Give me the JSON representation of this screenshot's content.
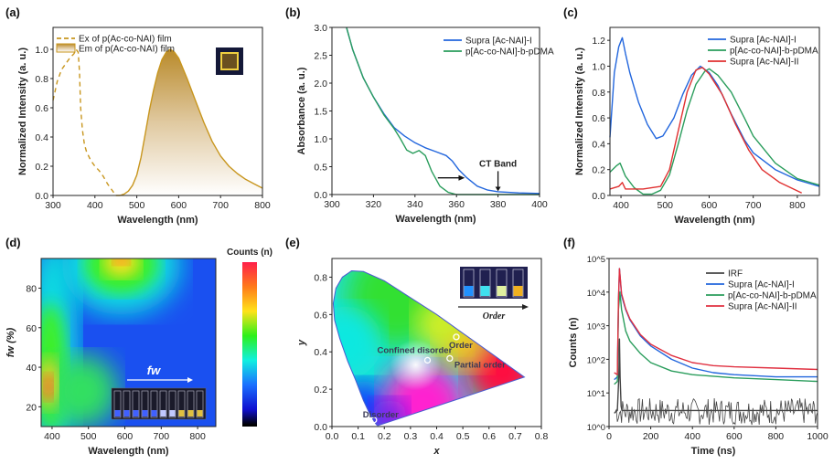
{
  "chart_data": [
    {
      "id": "a",
      "panel_label": "(a)",
      "type": "area",
      "xlabel": "Wavelength (nm)",
      "ylabel": "Normalized Intensity (a. u.)",
      "xlim": [
        300,
        800
      ],
      "ylim": [
        0,
        1.15
      ],
      "xticks": [
        300,
        400,
        500,
        600,
        700,
        800
      ],
      "yticks": [
        0.0,
        0.2,
        0.4,
        0.6,
        0.8,
        1.0
      ],
      "legend": "top-left",
      "grid": false,
      "series": [
        {
          "name": "Ex of p(Ac-co-NAI) film",
          "style": "dashed",
          "color": "#c8961e",
          "x": [
            300,
            310,
            320,
            330,
            340,
            350,
            355,
            360,
            363,
            366,
            370,
            375,
            380,
            390,
            400,
            410,
            420,
            430,
            440,
            450
          ],
          "y": [
            0.65,
            0.78,
            0.86,
            0.9,
            0.94,
            0.97,
            1.0,
            0.98,
            0.85,
            0.6,
            0.45,
            0.35,
            0.3,
            0.24,
            0.2,
            0.17,
            0.13,
            0.08,
            0.04,
            0.0
          ]
        },
        {
          "name": "Em of p(Ac-co-NAI) film",
          "style": "filled",
          "color": "#c8961e",
          "x": [
            450,
            460,
            470,
            480,
            490,
            500,
            510,
            520,
            530,
            540,
            550,
            560,
            570,
            580,
            590,
            600,
            620,
            640,
            660,
            680,
            700,
            720,
            740,
            760,
            780,
            800
          ],
          "y": [
            0.0,
            0.0,
            0.01,
            0.03,
            0.07,
            0.14,
            0.26,
            0.42,
            0.58,
            0.72,
            0.84,
            0.93,
            0.98,
            1.0,
            0.98,
            0.94,
            0.8,
            0.65,
            0.5,
            0.37,
            0.27,
            0.2,
            0.15,
            0.11,
            0.08,
            0.05
          ]
        }
      ]
    },
    {
      "id": "b",
      "panel_label": "(b)",
      "type": "line",
      "xlabel": "Wavelength (nm)",
      "ylabel": "Absorbance (a. u.)",
      "xlim": [
        300,
        400
      ],
      "ylim": [
        0,
        3.0
      ],
      "xticks": [
        300,
        320,
        340,
        360,
        380,
        400
      ],
      "yticks": [
        0.0,
        0.5,
        1.0,
        1.5,
        2.0,
        2.5,
        3.0
      ],
      "legend": "top-right",
      "grid": false,
      "annotations": [
        {
          "text": "CT Band",
          "x": 380,
          "y": 0.05
        }
      ],
      "series": [
        {
          "name": "Supra [Ac-NAI]-I",
          "color": "#2266dd",
          "x": [
            307,
            310,
            315,
            320,
            325,
            330,
            335,
            340,
            345,
            350,
            355,
            358,
            361,
            365,
            370,
            375,
            380,
            390,
            400
          ],
          "y": [
            3.0,
            2.6,
            2.1,
            1.75,
            1.45,
            1.2,
            1.05,
            0.93,
            0.84,
            0.77,
            0.7,
            0.6,
            0.45,
            0.3,
            0.15,
            0.08,
            0.05,
            0.03,
            0.02
          ]
        },
        {
          "name": "p[Ac-co-NAI]-b-pDMA",
          "color": "#2a9d5c",
          "x": [
            307,
            310,
            315,
            320,
            325,
            330,
            333,
            336,
            339,
            342,
            345,
            348,
            352,
            356,
            360,
            380,
            400
          ],
          "y": [
            3.0,
            2.6,
            2.1,
            1.75,
            1.43,
            1.18,
            1.0,
            0.8,
            0.74,
            0.79,
            0.7,
            0.42,
            0.15,
            0.04,
            0.0,
            0.0,
            0.0
          ]
        }
      ]
    },
    {
      "id": "c",
      "panel_label": "(c)",
      "type": "line",
      "xlabel": "Wavelength (nm)",
      "ylabel": "Normalized Intensity (a. u.)",
      "xlim": [
        375,
        850
      ],
      "ylim": [
        0,
        1.3
      ],
      "xticks": [
        400,
        500,
        600,
        700,
        800
      ],
      "yticks": [
        0.0,
        0.2,
        0.4,
        0.6,
        0.8,
        1.0,
        1.2
      ],
      "legend": "top-right",
      "grid": false,
      "series": [
        {
          "name": "Supra [Ac-NAI]-I",
          "color": "#2266dd",
          "x": [
            375,
            385,
            395,
            403,
            410,
            420,
            440,
            460,
            480,
            495,
            520,
            540,
            560,
            580,
            600,
            620,
            650,
            680,
            700,
            750,
            800,
            850
          ],
          "y": [
            0.45,
            0.95,
            1.15,
            1.22,
            1.1,
            0.95,
            0.72,
            0.55,
            0.44,
            0.46,
            0.6,
            0.78,
            0.93,
            1.0,
            0.95,
            0.85,
            0.63,
            0.43,
            0.33,
            0.2,
            0.12,
            0.07
          ]
        },
        {
          "name": "p[Ac-co-NAI]-b-pDMA",
          "color": "#2a9d5c",
          "x": [
            375,
            390,
            398,
            410,
            430,
            450,
            470,
            490,
            510,
            530,
            550,
            570,
            590,
            600,
            620,
            650,
            680,
            700,
            750,
            800,
            850
          ],
          "y": [
            0.18,
            0.23,
            0.25,
            0.15,
            0.06,
            0.01,
            0.01,
            0.04,
            0.16,
            0.4,
            0.66,
            0.86,
            0.96,
            0.98,
            0.93,
            0.8,
            0.6,
            0.46,
            0.25,
            0.13,
            0.08
          ]
        },
        {
          "name": "Supra [Ac-NAI]-II",
          "color": "#e03030",
          "x": [
            375,
            395,
            403,
            410,
            450,
            490,
            510,
            530,
            550,
            570,
            585,
            600,
            630,
            660,
            690,
            720,
            760,
            810
          ],
          "y": [
            0.05,
            0.07,
            0.1,
            0.05,
            0.05,
            0.07,
            0.2,
            0.5,
            0.8,
            0.97,
            0.99,
            0.94,
            0.78,
            0.55,
            0.35,
            0.2,
            0.1,
            0.02
          ]
        }
      ]
    },
    {
      "id": "d",
      "panel_label": "(d)",
      "type": "heatmap",
      "xlabel": "Wavelength (nm)",
      "ylabel": "fw (%)",
      "xlim": [
        370,
        850
      ],
      "ylim": [
        10,
        95
      ],
      "xticks": [
        400,
        500,
        600,
        700,
        800
      ],
      "yticks": [
        20,
        40,
        60,
        80
      ],
      "colorbar_label": "Counts (n)",
      "colormap": [
        "#ff1f4a",
        "#ff7a1a",
        "#ffe21a",
        "#2ef01a",
        "#10f0e0",
        "#1a70ff",
        "#1010d0",
        "#000000"
      ],
      "inset_label": "fw",
      "peaks": [
        {
          "x": 390,
          "y": 30,
          "level": "max"
        },
        {
          "x": 590,
          "y": 93,
          "level": "high"
        },
        {
          "x": 475,
          "y": 27,
          "level": "medium"
        }
      ]
    },
    {
      "id": "e",
      "panel_label": "(e)",
      "type": "scatter",
      "xlabel": "x",
      "ylabel": "y",
      "xlim": [
        0.0,
        0.8
      ],
      "ylim": [
        0.0,
        0.9
      ],
      "xticks": [
        0.0,
        0.1,
        0.2,
        0.3,
        0.4,
        0.5,
        0.6,
        0.7,
        0.8
      ],
      "yticks": [
        0.0,
        0.2,
        0.4,
        0.6,
        0.8
      ],
      "inset_label": "Order",
      "points": [
        {
          "label": "Disorder",
          "x": 0.16,
          "y": 0.035
        },
        {
          "label": "Confined disorder",
          "x": 0.365,
          "y": 0.355
        },
        {
          "label": "Partial order",
          "x": 0.45,
          "y": 0.365
        },
        {
          "label": "Order",
          "x": 0.475,
          "y": 0.48
        }
      ],
      "locus": {
        "x": [
          0.175,
          0.17,
          0.16,
          0.14,
          0.12,
          0.09,
          0.06,
          0.03,
          0.01,
          0.005,
          0.015,
          0.04,
          0.075,
          0.12,
          0.2,
          0.3,
          0.4,
          0.5,
          0.6,
          0.7,
          0.735
        ],
        "y": [
          0.005,
          0.01,
          0.03,
          0.08,
          0.14,
          0.25,
          0.35,
          0.47,
          0.57,
          0.66,
          0.74,
          0.8,
          0.834,
          0.83,
          0.78,
          0.69,
          0.6,
          0.5,
          0.4,
          0.3,
          0.265
        ]
      }
    },
    {
      "id": "f",
      "panel_label": "(f)",
      "type": "line",
      "yscale": "log",
      "xlabel": "Time (ns)",
      "ylabel": "Counts (n)",
      "xlim": [
        0,
        1000
      ],
      "ylim": [
        1,
        100000
      ],
      "xticks": [
        0,
        200,
        400,
        600,
        800,
        1000
      ],
      "yticks": [
        1,
        10,
        100,
        1000,
        10000,
        100000
      ],
      "ytick_labels": [
        "10^0",
        "10^1",
        "10^2",
        "10^3",
        "10^4",
        "10^5"
      ],
      "legend": "top-right",
      "grid": false,
      "series": [
        {
          "name": "IRF",
          "color": "#444444",
          "x": [
            25,
            40,
            47,
            50,
            53,
            58,
            62,
            100,
            200,
            300,
            400,
            500,
            600,
            700,
            800,
            900,
            1000
          ],
          "y": [
            2.5,
            3,
            30,
            400,
            30,
            4,
            3,
            3,
            3,
            3,
            3,
            3,
            3,
            3,
            3,
            3,
            3
          ]
        },
        {
          "name": "Supra [Ac-NAI]-I",
          "color": "#2266dd",
          "x": [
            25,
            40,
            45,
            50,
            60,
            80,
            100,
            150,
            200,
            300,
            400,
            500,
            600,
            800,
            1000
          ],
          "y": [
            25,
            30,
            5000,
            50000,
            8000,
            3000,
            1500,
            500,
            250,
            100,
            55,
            40,
            35,
            30,
            30
          ]
        },
        {
          "name": "p[Ac-co-NAI]-b-pDMA",
          "color": "#2a9d5c",
          "x": [
            25,
            40,
            45,
            52,
            60,
            80,
            100,
            150,
            200,
            300,
            400,
            600,
            800,
            1000
          ],
          "y": [
            18,
            22,
            3000,
            10000,
            3000,
            700,
            350,
            150,
            80,
            45,
            35,
            28,
            25,
            22
          ]
        },
        {
          "name": "Supra [Ac-NAI]-II",
          "color": "#e03040",
          "x": [
            25,
            40,
            45,
            50,
            60,
            80,
            100,
            150,
            200,
            300,
            400,
            500,
            600,
            800,
            1000
          ],
          "y": [
            40,
            35,
            6000,
            50000,
            9000,
            3200,
            1600,
            550,
            280,
            130,
            80,
            65,
            60,
            55,
            50
          ]
        }
      ]
    }
  ]
}
